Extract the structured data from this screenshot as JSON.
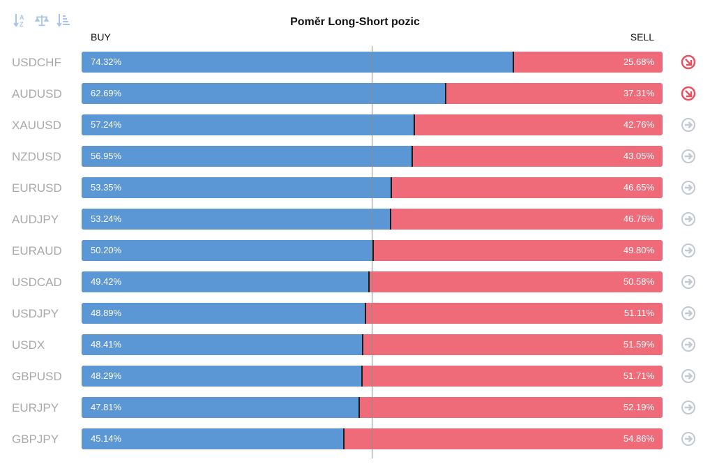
{
  "toolbar": {
    "tools": [
      {
        "icon": "sort-alpha-icon"
      },
      {
        "icon": "balance-scale-icon"
      },
      {
        "icon": "sort-numeric-icon"
      }
    ]
  },
  "colors": {
    "buy": "#5b96d5",
    "sell": "#f06b7a",
    "trend_down": "#e8505f",
    "trend_neutral": "#c3c9d0"
  },
  "chart_data": {
    "type": "bar",
    "orientation": "horizontal",
    "stacked": true,
    "title": "Poměr Long-Short pozic",
    "buy_label": "BUY",
    "sell_label": "SELL",
    "xlim": [
      0,
      100
    ],
    "center_line": 50,
    "categories": [
      "USDCHF",
      "AUDUSD",
      "XAUUSD",
      "NZDUSD",
      "EURUSD",
      "AUDJPY",
      "EURAUD",
      "USDCAD",
      "USDJPY",
      "USDX",
      "GBPUSD",
      "EURJPY",
      "GBPJPY"
    ],
    "series": [
      {
        "name": "BUY",
        "values": [
          74.32,
          62.69,
          57.24,
          56.95,
          53.35,
          53.24,
          50.2,
          49.42,
          48.89,
          48.41,
          48.29,
          47.81,
          45.14
        ]
      },
      {
        "name": "SELL",
        "values": [
          25.68,
          37.31,
          42.76,
          43.05,
          46.65,
          46.76,
          49.8,
          50.58,
          51.11,
          51.59,
          51.71,
          52.19,
          54.86
        ]
      }
    ],
    "buy_labels": [
      "74.32%",
      "62.69%",
      "57.24%",
      "56.95%",
      "53.35%",
      "53.24%",
      "50.20%",
      "49.42%",
      "48.89%",
      "48.41%",
      "48.29%",
      "47.81%",
      "45.14%"
    ],
    "sell_labels": [
      "25.68%",
      "37.31%",
      "42.76%",
      "43.05%",
      "46.65%",
      "46.76%",
      "49.80%",
      "50.58%",
      "51.11%",
      "51.59%",
      "51.71%",
      "52.19%",
      "54.86%"
    ],
    "trend_icons": [
      "arrow-down-right-icon",
      "arrow-down-right-icon",
      "arrow-right-icon",
      "arrow-right-icon",
      "arrow-right-icon",
      "arrow-right-icon",
      "arrow-right-icon",
      "arrow-right-icon",
      "arrow-right-icon",
      "arrow-right-icon",
      "arrow-right-icon",
      "arrow-right-icon",
      "arrow-right-icon"
    ]
  }
}
